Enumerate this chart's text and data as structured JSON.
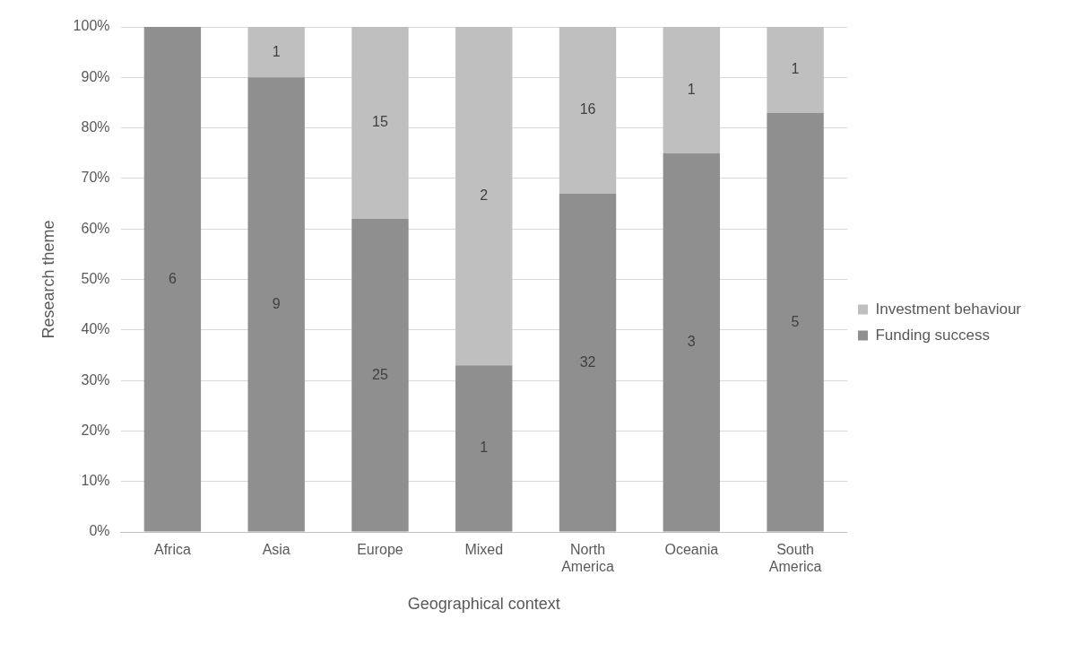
{
  "chart_data": {
    "type": "bar",
    "stacked": true,
    "xlabel": "Geographical context",
    "ylabel": "Research theme",
    "categories": [
      "Africa",
      "Asia",
      "Europe",
      "Mixed",
      "North America",
      "Oceania",
      "South America"
    ],
    "series": [
      {
        "name": "Funding success",
        "color": "#8f8f8f",
        "values": [
          100,
          90,
          62,
          33,
          67,
          75,
          83
        ]
      },
      {
        "name": "Investment behaviour",
        "color": "#bfbfbf",
        "values": [
          0,
          10,
          38,
          67,
          33,
          25,
          17
        ]
      }
    ],
    "annotations": [
      "6",
      "9",
      "1",
      "25",
      "15",
      "1",
      "2",
      "32",
      "16",
      "3",
      "1",
      "5",
      "1"
    ],
    "ylim": [
      0,
      100
    ],
    "yticks": [
      {
        "value": 0,
        "label": "0%"
      },
      {
        "value": 10,
        "label": "10%"
      },
      {
        "value": 20,
        "label": "20%"
      },
      {
        "value": 30,
        "label": "30%"
      },
      {
        "value": 40,
        "label": "40%"
      },
      {
        "value": 50,
        "label": "50%"
      },
      {
        "value": 60,
        "label": "60%"
      },
      {
        "value": 70,
        "label": "70%"
      },
      {
        "value": 80,
        "label": "80%"
      },
      {
        "value": 90,
        "label": "90%"
      },
      {
        "value": 100,
        "label": "100%"
      }
    ],
    "grid": "y",
    "legend": "right"
  }
}
